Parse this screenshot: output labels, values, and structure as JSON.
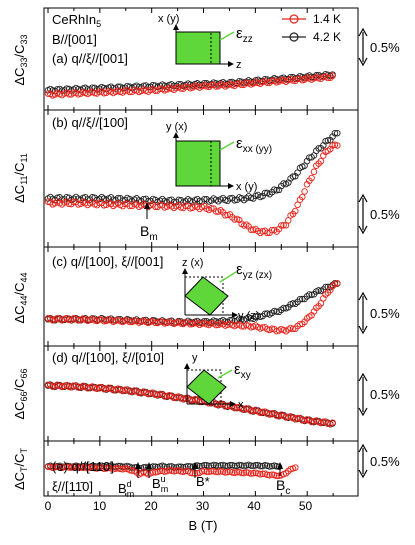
{
  "figure": {
    "sample": "CeRhIn",
    "sample_sub": "5",
    "field_dir": "B//[001]",
    "xlabel": "B (T)",
    "x_ticks": [
      "0",
      "10",
      "20",
      "30",
      "40",
      "50"
    ],
    "scale_bar_label": "0.5%",
    "legend": [
      {
        "label": "1.4 K",
        "color": "#e8231a",
        "marker": "open-circle"
      },
      {
        "label": "4.2 K",
        "color": "#222222",
        "marker": "open-circle"
      }
    ]
  },
  "panels": [
    {
      "id": "a",
      "ylabel": "ΔC33/C33",
      "ylabel_main": "ΔC",
      "ylabel_sub1": "33",
      "ylabel_mid": "/C",
      "ylabel_sub2": "33",
      "mode_label": "(a) q//ξ//[001]",
      "strain_label": "ε",
      "strain_sub": "zz",
      "strain_axes": {
        "vertical": "x (y)",
        "horizontal": "z"
      },
      "annotations": []
    },
    {
      "id": "b",
      "ylabel": "ΔC11/C11",
      "ylabel_main": "ΔC",
      "ylabel_sub1": "11",
      "ylabel_mid": "/C",
      "ylabel_sub2": "11",
      "mode_label": "(b) q//ξ//[100]",
      "strain_label": "ε",
      "strain_sub": "xx (yy)",
      "strain_axes": {
        "vertical": "y (x)",
        "horizontal": "x (y)"
      },
      "annotations": [
        {
          "text": "B",
          "sub": "m",
          "x_T": 17
        }
      ]
    },
    {
      "id": "c",
      "ylabel": "ΔC44/C44",
      "ylabel_main": "ΔC",
      "ylabel_sub1": "44",
      "ylabel_mid": "/C",
      "ylabel_sub2": "44",
      "mode_label": "(c) q//[100], ξ//[001]",
      "strain_label": "ε",
      "strain_sub": "yz (zx)",
      "strain_axes": {
        "vertical": "z (x)",
        "horizontal": "y (z)"
      },
      "annotations": []
    },
    {
      "id": "d",
      "ylabel": "ΔC66/C66",
      "ylabel_main": "ΔC",
      "ylabel_sub1": "66",
      "ylabel_mid": "/C",
      "ylabel_sub2": "66",
      "mode_label": "(d) q//[100], ξ//[010]",
      "strain_label": "ε",
      "strain_sub": "xy",
      "strain_axes": {
        "vertical": "y",
        "horizontal": "x"
      },
      "annotations": []
    },
    {
      "id": "e",
      "ylabel": "ΔCT/CT",
      "ylabel_main": "ΔC",
      "ylabel_sub1": "T",
      "ylabel_mid": "/C",
      "ylabel_sub2": "T",
      "mode_label": "(e) q//[110]",
      "mode_label2": "ξ//[11̄0]",
      "annotations": [
        {
          "text": "B",
          "sub": "m",
          "sup": "d",
          "x_T": 17.5
        },
        {
          "text": "B",
          "sub": "m",
          "sup": "u",
          "x_T": 19.5
        },
        {
          "text": "B*",
          "x_T": 28.5
        },
        {
          "text": "B",
          "sub": "c",
          "x_T": 45
        }
      ]
    }
  ],
  "chart_data": {
    "type": "scatter",
    "xlabel": "B (T)",
    "xlim": [
      0,
      57
    ],
    "x_ticks": [
      0,
      10,
      20,
      30,
      40,
      50
    ],
    "y_unit": "%",
    "scale_bar_percent": 0.5,
    "panels": [
      {
        "id": "a",
        "ylim": [
          -0.15,
          0.75
        ],
        "series": [
          {
            "name": "4.2 K",
            "color": "#222222",
            "x": [
              0,
              5,
              10,
              15,
              20,
              25,
              30,
              35,
              40,
              45,
              50,
              55
            ],
            "y": [
              0.0,
              0.01,
              0.02,
              0.03,
              0.04,
              0.05,
              0.06,
              0.07,
              0.09,
              0.11,
              0.13,
              0.15
            ]
          },
          {
            "name": "1.4 K",
            "color": "#e8231a",
            "x": [
              0,
              5,
              10,
              15,
              20,
              25,
              30,
              35,
              40,
              45,
              50,
              55
            ],
            "y": [
              -0.04,
              -0.03,
              -0.02,
              -0.01,
              0.0,
              0.02,
              0.04,
              0.05,
              0.07,
              0.09,
              0.11,
              0.13
            ]
          }
        ]
      },
      {
        "id": "b",
        "ylim": [
          -0.5,
          0.95
        ],
        "series": [
          {
            "name": "4.2 K",
            "color": "#222222",
            "x": [
              0,
              5,
              10,
              15,
              20,
              25,
              30,
              35,
              38,
              41,
              44,
              47,
              50,
              53,
              56
            ],
            "y": [
              0.0,
              0.0,
              0.0,
              -0.01,
              -0.02,
              -0.03,
              -0.02,
              -0.01,
              0.0,
              0.03,
              0.09,
              0.22,
              0.42,
              0.6,
              0.75
            ]
          },
          {
            "name": "1.4 K",
            "color": "#e8231a",
            "x": [
              0,
              5,
              10,
              15,
              20,
              25,
              30,
              33,
              36,
              38,
              40,
              42,
              44,
              46,
              48,
              50,
              52,
              54,
              56
            ],
            "y": [
              -0.05,
              -0.05,
              -0.06,
              -0.07,
              -0.08,
              -0.09,
              -0.1,
              -0.14,
              -0.22,
              -0.3,
              -0.36,
              -0.38,
              -0.36,
              -0.28,
              -0.1,
              0.15,
              0.38,
              0.55,
              0.62
            ]
          }
        ]
      },
      {
        "id": "c",
        "ylim": [
          -0.25,
          0.75
        ],
        "series": [
          {
            "name": "4.2 K",
            "color": "#222222",
            "x": [
              0,
              5,
              10,
              15,
              20,
              25,
              30,
              35,
              40,
              45,
              50,
              53,
              56
            ],
            "y": [
              0.0,
              0.0,
              0.0,
              -0.01,
              -0.02,
              -0.03,
              -0.03,
              -0.02,
              0.02,
              0.1,
              0.25,
              0.33,
              0.4
            ]
          },
          {
            "name": "1.4 K",
            "color": "#e8231a",
            "x": [
              0,
              5,
              10,
              15,
              20,
              25,
              30,
              35,
              40,
              42,
              44,
              46,
              48,
              50,
              52,
              54,
              56
            ],
            "y": [
              0.0,
              0.0,
              -0.01,
              -0.02,
              -0.03,
              -0.04,
              -0.05,
              -0.06,
              -0.08,
              -0.1,
              -0.12,
              -0.12,
              -0.09,
              0.0,
              0.13,
              0.3,
              0.42
            ]
          }
        ]
      },
      {
        "id": "d",
        "ylim": [
          -0.65,
          0.45
        ],
        "series": [
          {
            "name": "4.2 K",
            "color": "#222222",
            "x": [
              0,
              5,
              10,
              15,
              20,
              25,
              30,
              35,
              40,
              45,
              50,
              55
            ],
            "y": [
              0.0,
              -0.01,
              -0.03,
              -0.06,
              -0.1,
              -0.15,
              -0.2,
              -0.26,
              -0.32,
              -0.38,
              -0.44,
              -0.48
            ]
          },
          {
            "name": "1.4 K",
            "color": "#e8231a",
            "x": [
              0,
              5,
              10,
              15,
              20,
              25,
              30,
              35,
              40,
              45,
              50,
              55
            ],
            "y": [
              0.0,
              -0.01,
              -0.03,
              -0.06,
              -0.1,
              -0.15,
              -0.2,
              -0.26,
              -0.32,
              -0.38,
              -0.44,
              -0.48
            ]
          }
        ]
      },
      {
        "id": "e",
        "ylim": [
          -0.3,
          0.25
        ],
        "series": [
          {
            "name": "4.2 K",
            "color": "#222222",
            "x": [
              0,
              5,
              10,
              15,
              17.5,
              19.5,
              22,
              25,
              28,
              30,
              35,
              40,
              45
            ],
            "y": [
              0.0,
              0.0,
              0.0,
              0.0,
              -0.02,
              -0.01,
              0.0,
              -0.01,
              0.0,
              0.01,
              0.01,
              0.01,
              0.0
            ]
          },
          {
            "name": "1.4 K",
            "color": "#e8231a",
            "x": [
              0,
              5,
              10,
              15,
              16.5,
              17.5,
              18.5,
              19.5,
              21,
              24,
              27,
              28.5,
              29.5,
              32,
              36,
              40,
              43,
              45,
              46,
              47,
              48
            ],
            "y": [
              -0.01,
              -0.01,
              -0.02,
              -0.03,
              -0.05,
              -0.09,
              -0.07,
              -0.09,
              -0.06,
              -0.05,
              -0.06,
              -0.09,
              -0.06,
              -0.06,
              -0.07,
              -0.08,
              -0.1,
              -0.11,
              -0.07,
              -0.03,
              0.0
            ]
          }
        ]
      }
    ]
  }
}
